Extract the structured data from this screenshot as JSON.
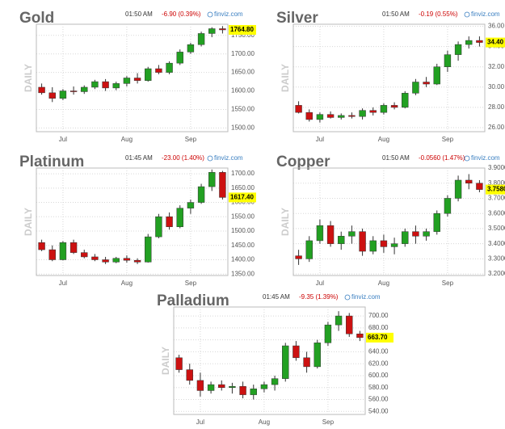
{
  "chart_data": [
    {
      "type": "candlestick",
      "title": "Gold",
      "time": "01:50 AM",
      "change": "-6.90 (0.39%)",
      "source": "finviz.com",
      "ylabel": "DAILY",
      "categories": [
        null,
        null,
        "Jul",
        null,
        null,
        null,
        null,
        null,
        "Aug",
        null,
        null,
        null,
        null,
        null,
        "Sep",
        null,
        null,
        null
      ],
      "ohlc": [
        [
          1610,
          1620,
          1590,
          1595
        ],
        [
          1595,
          1610,
          1570,
          1580
        ],
        [
          1580,
          1605,
          1575,
          1600
        ],
        [
          1600,
          1612,
          1590,
          1598
        ],
        [
          1598,
          1615,
          1592,
          1610
        ],
        [
          1610,
          1630,
          1605,
          1625
        ],
        [
          1625,
          1632,
          1600,
          1608
        ],
        [
          1608,
          1625,
          1602,
          1620
        ],
        [
          1620,
          1640,
          1612,
          1635
        ],
        [
          1635,
          1648,
          1620,
          1628
        ],
        [
          1628,
          1665,
          1625,
          1660
        ],
        [
          1660,
          1670,
          1645,
          1650
        ],
        [
          1650,
          1680,
          1645,
          1675
        ],
        [
          1675,
          1712,
          1670,
          1705
        ],
        [
          1705,
          1730,
          1700,
          1725
        ],
        [
          1725,
          1760,
          1720,
          1755
        ],
        [
          1755,
          1772,
          1745,
          1768
        ],
        [
          1768,
          1775,
          1755,
          1764.8
        ]
      ],
      "last_price": {
        "value": 1764.8,
        "label": "1764.80"
      },
      "ylim": [
        1490,
        1780
      ],
      "yticks": [
        {
          "value": 1500,
          "label": "1500.00"
        },
        {
          "value": 1550,
          "label": "1550.00"
        },
        {
          "value": 1600,
          "label": "1600.00"
        },
        {
          "value": 1650,
          "label": "1650.00"
        },
        {
          "value": 1700,
          "label": "1700.00"
        },
        {
          "value": 1750,
          "label": "1750.00"
        }
      ],
      "grid": true,
      "up_color": "#22a022",
      "down_color": "#cc1111"
    },
    {
      "type": "candlestick",
      "title": "Silver",
      "time": "01:50 AM",
      "change": "-0.19 (0.55%)",
      "source": "finviz.com",
      "ylabel": "DAILY",
      "categories": [
        null,
        null,
        "Jul",
        null,
        null,
        null,
        null,
        null,
        "Aug",
        null,
        null,
        null,
        null,
        null,
        "Sep",
        null,
        null,
        null
      ],
      "ohlc": [
        [
          28.2,
          28.6,
          27.4,
          27.5
        ],
        [
          27.5,
          27.8,
          26.6,
          26.8
        ],
        [
          26.8,
          27.5,
          26.5,
          27.3
        ],
        [
          27.3,
          27.6,
          26.9,
          27.0
        ],
        [
          27.0,
          27.4,
          26.8,
          27.2
        ],
        [
          27.2,
          27.5,
          26.9,
          27.1
        ],
        [
          27.1,
          27.9,
          26.8,
          27.7
        ],
        [
          27.7,
          28.0,
          27.2,
          27.5
        ],
        [
          27.5,
          28.4,
          27.3,
          28.2
        ],
        [
          28.2,
          28.5,
          27.8,
          28.0
        ],
        [
          28.0,
          29.6,
          27.9,
          29.4
        ],
        [
          29.4,
          30.8,
          29.2,
          30.5
        ],
        [
          30.5,
          31.0,
          30.0,
          30.3
        ],
        [
          30.3,
          32.3,
          30.2,
          32.0
        ],
        [
          32.0,
          33.6,
          31.5,
          33.2
        ],
        [
          33.2,
          34.5,
          32.6,
          34.2
        ],
        [
          34.2,
          35.0,
          33.8,
          34.6
        ],
        [
          34.6,
          35.0,
          34.0,
          34.4
        ]
      ],
      "last_price": {
        "value": 34.4,
        "label": "34.40"
      },
      "ylim": [
        25.6,
        36.2
      ],
      "yticks": [
        {
          "value": 26,
          "label": "26.00"
        },
        {
          "value": 28,
          "label": "28.00"
        },
        {
          "value": 30,
          "label": "30.00"
        },
        {
          "value": 32,
          "label": "32.00"
        },
        {
          "value": 34,
          "label": "34.00"
        },
        {
          "value": 36,
          "label": "36.00"
        }
      ],
      "grid": true,
      "up_color": "#22a022",
      "down_color": "#cc1111"
    },
    {
      "type": "candlestick",
      "title": "Platinum",
      "time": "01:45 AM",
      "change": "-23.00 (1.40%)",
      "source": "finviz.com",
      "ylabel": "DAILY",
      "categories": [
        null,
        null,
        "Jul",
        null,
        null,
        null,
        null,
        null,
        "Aug",
        null,
        null,
        null,
        null,
        null,
        "Sep",
        null,
        null,
        null
      ],
      "ohlc": [
        [
          1460,
          1470,
          1430,
          1435
        ],
        [
          1435,
          1450,
          1395,
          1400
        ],
        [
          1400,
          1465,
          1398,
          1460
        ],
        [
          1460,
          1470,
          1420,
          1425
        ],
        [
          1425,
          1435,
          1405,
          1410
        ],
        [
          1410,
          1420,
          1395,
          1400
        ],
        [
          1400,
          1410,
          1385,
          1392
        ],
        [
          1392,
          1410,
          1388,
          1405
        ],
        [
          1405,
          1415,
          1390,
          1398
        ],
        [
          1398,
          1405,
          1385,
          1392
        ],
        [
          1392,
          1490,
          1390,
          1480
        ],
        [
          1480,
          1560,
          1475,
          1550
        ],
        [
          1550,
          1565,
          1505,
          1515
        ],
        [
          1515,
          1590,
          1510,
          1580
        ],
        [
          1580,
          1610,
          1560,
          1600
        ],
        [
          1600,
          1665,
          1595,
          1655
        ],
        [
          1655,
          1715,
          1640,
          1705
        ],
        [
          1705,
          1710,
          1610,
          1617.4
        ]
      ],
      "last_price": {
        "value": 1617.4,
        "label": "1617.40"
      },
      "ylim": [
        1345,
        1720
      ],
      "yticks": [
        {
          "value": 1350,
          "label": "1350.00"
        },
        {
          "value": 1400,
          "label": "1400.00"
        },
        {
          "value": 1450,
          "label": "1450.00"
        },
        {
          "value": 1500,
          "label": "1500.00"
        },
        {
          "value": 1550,
          "label": "1550.00"
        },
        {
          "value": 1600,
          "label": "1600.00"
        },
        {
          "value": 1650,
          "label": "1650.00"
        },
        {
          "value": 1700,
          "label": "1700.00"
        }
      ],
      "grid": true,
      "up_color": "#22a022",
      "down_color": "#cc1111"
    },
    {
      "type": "candlestick",
      "title": "Copper",
      "time": "01:50 AM",
      "change": "-0.0560 (1.47%)",
      "source": "finviz.com",
      "ylabel": "DAILY",
      "categories": [
        null,
        null,
        "Jul",
        null,
        null,
        null,
        null,
        null,
        "Aug",
        null,
        null,
        null,
        null,
        null,
        "Sep",
        null,
        null,
        null
      ],
      "ohlc": [
        [
          3.32,
          3.36,
          3.26,
          3.3
        ],
        [
          3.3,
          3.45,
          3.28,
          3.42
        ],
        [
          3.42,
          3.56,
          3.4,
          3.52
        ],
        [
          3.52,
          3.55,
          3.38,
          3.4
        ],
        [
          3.4,
          3.48,
          3.36,
          3.45
        ],
        [
          3.45,
          3.52,
          3.4,
          3.48
        ],
        [
          3.48,
          3.5,
          3.32,
          3.35
        ],
        [
          3.35,
          3.45,
          3.33,
          3.42
        ],
        [
          3.42,
          3.46,
          3.34,
          3.38
        ],
        [
          3.38,
          3.44,
          3.33,
          3.4
        ],
        [
          3.4,
          3.5,
          3.38,
          3.48
        ],
        [
          3.48,
          3.52,
          3.4,
          3.45
        ],
        [
          3.45,
          3.5,
          3.42,
          3.48
        ],
        [
          3.48,
          3.62,
          3.46,
          3.6
        ],
        [
          3.6,
          3.72,
          3.58,
          3.7
        ],
        [
          3.7,
          3.85,
          3.68,
          3.82
        ],
        [
          3.82,
          3.86,
          3.76,
          3.8
        ],
        [
          3.8,
          3.82,
          3.74,
          3.758
        ]
      ],
      "last_price": {
        "value": 3.758,
        "label": "3.7580"
      },
      "ylim": [
        3.19,
        3.9
      ],
      "yticks": [
        {
          "value": 3.2,
          "label": "3.2000"
        },
        {
          "value": 3.3,
          "label": "3.3000"
        },
        {
          "value": 3.4,
          "label": "3.4000"
        },
        {
          "value": 3.5,
          "label": "3.5000"
        },
        {
          "value": 3.6,
          "label": "3.6000"
        },
        {
          "value": 3.7,
          "label": "3.7000"
        },
        {
          "value": 3.8,
          "label": "3.8000"
        },
        {
          "value": 3.9,
          "label": "3.9000"
        }
      ],
      "grid": true,
      "up_color": "#22a022",
      "down_color": "#cc1111"
    },
    {
      "type": "candlestick",
      "title": "Palladium",
      "time": "01:45 AM",
      "change": "-9.35 (1.39%)",
      "source": "finviz.com",
      "ylabel": "DAILY",
      "categories": [
        null,
        null,
        "Jul",
        null,
        null,
        null,
        null,
        null,
        "Aug",
        null,
        null,
        null,
        null,
        null,
        "Sep",
        null,
        null,
        null
      ],
      "ohlc": [
        [
          630,
          635,
          605,
          610
        ],
        [
          610,
          620,
          585,
          592
        ],
        [
          592,
          605,
          565,
          575
        ],
        [
          575,
          590,
          570,
          585
        ],
        [
          585,
          592,
          575,
          580
        ],
        [
          580,
          588,
          570,
          582
        ],
        [
          582,
          590,
          562,
          568
        ],
        [
          568,
          585,
          560,
          578
        ],
        [
          578,
          590,
          572,
          585
        ],
        [
          585,
          600,
          575,
          595
        ],
        [
          595,
          655,
          590,
          650
        ],
        [
          650,
          658,
          625,
          630
        ],
        [
          630,
          640,
          605,
          615
        ],
        [
          615,
          660,
          612,
          655
        ],
        [
          655,
          690,
          650,
          685
        ],
        [
          685,
          708,
          675,
          700
        ],
        [
          700,
          705,
          665,
          670
        ],
        [
          670,
          675,
          658,
          663.7
        ]
      ],
      "last_price": {
        "value": 663.7,
        "label": "663.70"
      },
      "ylim": [
        535,
        715
      ],
      "yticks": [
        {
          "value": 540,
          "label": "540.00"
        },
        {
          "value": 560,
          "label": "560.00"
        },
        {
          "value": 580,
          "label": "580.00"
        },
        {
          "value": 600,
          "label": "600.00"
        },
        {
          "value": 620,
          "label": "620.00"
        },
        {
          "value": 640,
          "label": "640.00"
        },
        {
          "value": 660,
          "label": "660.00"
        },
        {
          "value": 680,
          "label": "680.00"
        },
        {
          "value": 700,
          "label": "700.00"
        }
      ],
      "grid": true,
      "up_color": "#22a022",
      "down_color": "#cc1111"
    }
  ]
}
